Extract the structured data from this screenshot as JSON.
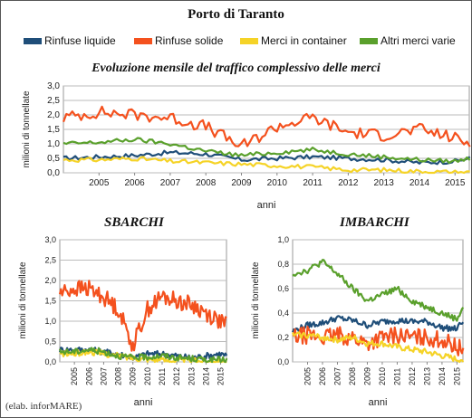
{
  "main_title": "Porto di Taranto",
  "credit": "(elab. inforMARE)",
  "legend": [
    {
      "label": "Rinfuse liquide",
      "color": "#1f4e79"
    },
    {
      "label": "Rinfuse solide",
      "color": "#f4511e"
    },
    {
      "label": "Merci in container",
      "color": "#f5d327"
    },
    {
      "label": "Altri merci varie",
      "color": "#5aa02c"
    }
  ],
  "chart_data": [
    {
      "id": "top",
      "type": "line",
      "title": "Evoluzione mensile del traffico complessivo delle merci",
      "xlabel": "anni",
      "ylabel": "milioni di tonnellate",
      "ylim": [
        0,
        3.0
      ],
      "yticks": [
        "0,0",
        "0,5",
        "1,0",
        "1,5",
        "2,0",
        "2,5",
        "3,0"
      ],
      "x_tick_labels": [
        "2005",
        "2006",
        "2007",
        "2008",
        "2009",
        "2010",
        "2011",
        "2012",
        "2013",
        "2014",
        "2015"
      ],
      "x_range": [
        2004.5,
        2015.9
      ],
      "grid": true,
      "series": [
        {
          "name": "Rinfuse liquide",
          "color": "#1f4e79",
          "x": [
            2004.5,
            2005.5,
            2006.5,
            2007.5,
            2008.5,
            2009.5,
            2010.5,
            2011.5,
            2012.5,
            2013.5,
            2014.5,
            2015.5,
            2015.9
          ],
          "values": [
            0.5,
            0.55,
            0.6,
            0.7,
            0.65,
            0.45,
            0.5,
            0.55,
            0.5,
            0.45,
            0.35,
            0.4,
            0.5
          ]
        },
        {
          "name": "Rinfuse solide",
          "color": "#f4511e",
          "x": [
            2004.5,
            2005.5,
            2006.5,
            2007.5,
            2008.5,
            2009.5,
            2010.5,
            2011.5,
            2012.5,
            2013.5,
            2014.5,
            2015.5,
            2015.9
          ],
          "values": [
            1.9,
            2.1,
            2.0,
            1.9,
            1.6,
            0.9,
            1.6,
            1.9,
            1.4,
            1.3,
            1.5,
            1.2,
            1.0
          ]
        },
        {
          "name": "Merci in container",
          "color": "#f5d327",
          "x": [
            2004.5,
            2005.5,
            2006.5,
            2007.5,
            2008.5,
            2009.5,
            2010.5,
            2011.5,
            2012.5,
            2013.5,
            2014.5,
            2015.5,
            2015.9
          ],
          "values": [
            0.45,
            0.45,
            0.5,
            0.4,
            0.35,
            0.3,
            0.25,
            0.2,
            0.1,
            0.1,
            0.05,
            0.02,
            0.02
          ]
        },
        {
          "name": "Altri merci varie",
          "color": "#5aa02c",
          "x": [
            2004.5,
            2005.5,
            2006.5,
            2007.5,
            2008.5,
            2009.5,
            2010.5,
            2011.5,
            2012.5,
            2013.5,
            2014.5,
            2015.5,
            2015.9
          ],
          "values": [
            1.0,
            1.05,
            1.15,
            1.0,
            0.75,
            0.6,
            0.7,
            0.8,
            0.65,
            0.55,
            0.45,
            0.4,
            0.5
          ]
        }
      ]
    },
    {
      "id": "left",
      "type": "line",
      "title": "SBARCHI",
      "xlabel": "anni",
      "ylabel": "milioni di tonnellate",
      "ylim": [
        0,
        3.0
      ],
      "yticks": [
        "0,0",
        "0,5",
        "1,0",
        "1,5",
        "2,0",
        "2,5",
        "3,0"
      ],
      "x_tick_labels": [
        "2005",
        "2006",
        "2007",
        "2008",
        "2009",
        "2010",
        "2011",
        "2012",
        "2013",
        "2014",
        "2015"
      ],
      "x_range": [
        2004.5,
        2015.9
      ],
      "grid": true,
      "series": [
        {
          "name": "Rinfuse liquide",
          "color": "#1f4e79",
          "x": [
            2004.5,
            2005.5,
            2006.5,
            2007.5,
            2008.5,
            2009.5,
            2010.5,
            2011.5,
            2012.5,
            2013.5,
            2014.5,
            2015.5,
            2015.9
          ],
          "values": [
            0.3,
            0.3,
            0.3,
            0.25,
            0.2,
            0.1,
            0.2,
            0.2,
            0.15,
            0.1,
            0.15,
            0.2,
            0.15
          ]
        },
        {
          "name": "Rinfuse solide",
          "color": "#f4511e",
          "x": [
            2004.5,
            2005.5,
            2006.5,
            2007.5,
            2008.5,
            2009.5,
            2010.5,
            2011.5,
            2012.5,
            2013.5,
            2014.5,
            2015.5,
            2015.9
          ],
          "values": [
            1.7,
            1.8,
            1.8,
            1.6,
            1.3,
            0.4,
            1.3,
            1.6,
            1.5,
            1.4,
            1.2,
            1.0,
            0.9
          ]
        },
        {
          "name": "Merci in container",
          "color": "#f5d327",
          "x": [
            2004.5,
            2005.5,
            2006.5,
            2007.5,
            2008.5,
            2009.5,
            2010.5,
            2011.5,
            2012.5,
            2013.5,
            2014.5,
            2015.5,
            2015.9
          ],
          "values": [
            0.2,
            0.2,
            0.25,
            0.2,
            0.15,
            0.1,
            0.08,
            0.05,
            0.03,
            0.03,
            0.02,
            0.01,
            0.01
          ]
        },
        {
          "name": "Altri merci varie",
          "color": "#5aa02c",
          "x": [
            2004.5,
            2005.5,
            2006.5,
            2007.5,
            2008.5,
            2009.5,
            2010.5,
            2011.5,
            2012.5,
            2013.5,
            2014.5,
            2015.5,
            2015.9
          ],
          "values": [
            0.25,
            0.25,
            0.3,
            0.25,
            0.15,
            0.1,
            0.12,
            0.15,
            0.1,
            0.08,
            0.05,
            0.05,
            0.05
          ]
        }
      ]
    },
    {
      "id": "right",
      "type": "line",
      "title": "IMBARCHI",
      "xlabel": "anni",
      "ylabel": "milioni di tonnellate",
      "ylim": [
        0,
        1.0
      ],
      "yticks": [
        "0,0",
        "0,2",
        "0,4",
        "0,6",
        "0,8",
        "1,0"
      ],
      "x_tick_labels": [
        "2005",
        "2006",
        "2007",
        "2008",
        "2009",
        "2010",
        "2011",
        "2012",
        "2013",
        "2014",
        "2015"
      ],
      "x_range": [
        2004.5,
        2015.9
      ],
      "grid": true,
      "series": [
        {
          "name": "Rinfuse liquide",
          "color": "#1f4e79",
          "x": [
            2004.5,
            2005.5,
            2006.5,
            2007.5,
            2008.5,
            2009.5,
            2010.5,
            2011.5,
            2012.5,
            2013.5,
            2014.5,
            2015.5,
            2015.9
          ],
          "values": [
            0.25,
            0.3,
            0.32,
            0.36,
            0.34,
            0.3,
            0.33,
            0.34,
            0.33,
            0.33,
            0.28,
            0.27,
            0.34
          ]
        },
        {
          "name": "Rinfuse solide",
          "color": "#f4511e",
          "x": [
            2004.5,
            2005.5,
            2006.5,
            2007.5,
            2008.5,
            2009.5,
            2010.5,
            2011.5,
            2012.5,
            2013.5,
            2014.5,
            2015.5,
            2015.9
          ],
          "values": [
            0.2,
            0.22,
            0.2,
            0.22,
            0.2,
            0.15,
            0.2,
            0.22,
            0.2,
            0.2,
            0.18,
            0.12,
            0.1
          ]
        },
        {
          "name": "Merci in container",
          "color": "#f5d327",
          "x": [
            2004.5,
            2005.5,
            2006.5,
            2007.5,
            2008.5,
            2009.5,
            2010.5,
            2011.5,
            2012.5,
            2013.5,
            2014.5,
            2015.5,
            2015.9
          ],
          "values": [
            0.22,
            0.22,
            0.2,
            0.18,
            0.2,
            0.15,
            0.15,
            0.12,
            0.1,
            0.08,
            0.05,
            0.02,
            0.02
          ]
        },
        {
          "name": "Altri merci varie",
          "color": "#5aa02c",
          "x": [
            2004.5,
            2005.5,
            2006.5,
            2007.5,
            2008.5,
            2009.5,
            2010.5,
            2011.5,
            2012.5,
            2013.5,
            2014.5,
            2015.5,
            2015.9
          ],
          "values": [
            0.72,
            0.75,
            0.82,
            0.72,
            0.6,
            0.5,
            0.55,
            0.6,
            0.5,
            0.45,
            0.4,
            0.35,
            0.45
          ]
        }
      ]
    }
  ]
}
